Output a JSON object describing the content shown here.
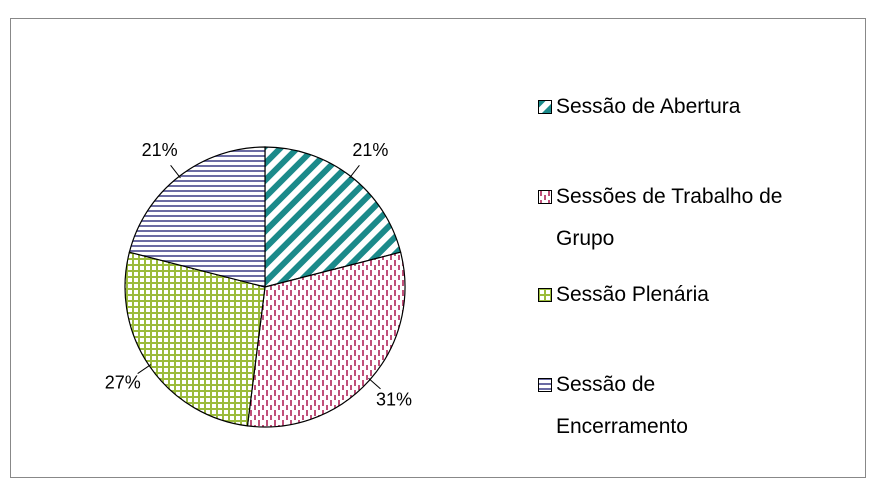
{
  "chart_data": {
    "type": "pie",
    "categories": [
      "Sessão de Abertura",
      "Sessões de Trabalho de Grupo",
      "Sessão Plenária",
      "Sessão de Encerramento"
    ],
    "values": [
      21,
      31,
      27,
      21
    ],
    "value_labels": [
      "21%",
      "31%",
      "27%",
      "21%"
    ],
    "colors": [
      "#1b8a8a",
      "#c0507a",
      "#9bbb3c",
      "#6b6ba3"
    ],
    "hatch": [
      "diagonal",
      "dashed-vertical",
      "grid",
      "horizontal"
    ],
    "legend": "right"
  }
}
